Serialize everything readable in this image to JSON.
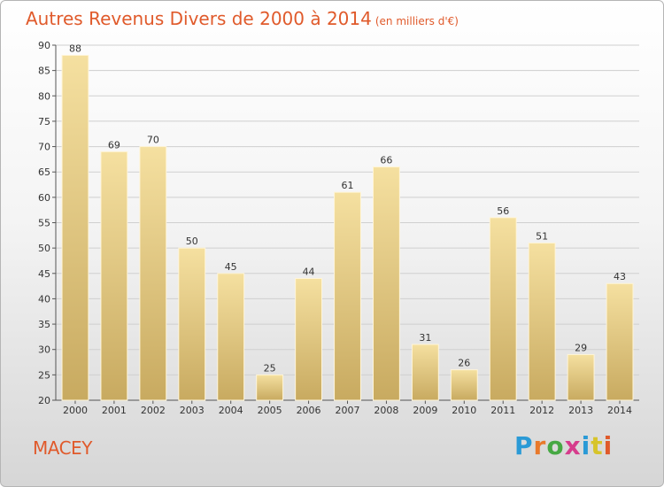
{
  "header": {
    "title": "Autres Revenus Divers de 2000 à 2014",
    "subtitle": "(en milliers d'€)"
  },
  "footer": {
    "commune": "MACEY",
    "logo_text": "Proxiti",
    "logo_colors": [
      "#2a9ad6",
      "#e8792b",
      "#46a843",
      "#d63c8c",
      "#2a9ad6",
      "#d7c42b",
      "#e05a2b"
    ]
  },
  "colors": {
    "bar_top": "#f5e0a0",
    "bar_bottom": "#c8aa60",
    "bar_edge": "#fff5d8",
    "title": "#e05a2b"
  },
  "chart_data": {
    "type": "bar",
    "title": "Autres Revenus Divers de 2000 à 2014",
    "subtitle": "(en milliers d'€)",
    "categories": [
      "2000",
      "2001",
      "2002",
      "2003",
      "2004",
      "2005",
      "2006",
      "2007",
      "2008",
      "2009",
      "2010",
      "2011",
      "2012",
      "2013",
      "2014"
    ],
    "values": [
      88,
      69,
      70,
      50,
      45,
      25,
      44,
      61,
      66,
      31,
      26,
      56,
      51,
      29,
      43
    ],
    "ylim": [
      20,
      90
    ],
    "yticks": [
      20,
      25,
      30,
      35,
      40,
      45,
      50,
      55,
      60,
      65,
      70,
      75,
      80,
      85,
      90
    ],
    "grid": true,
    "data_labels": true
  }
}
